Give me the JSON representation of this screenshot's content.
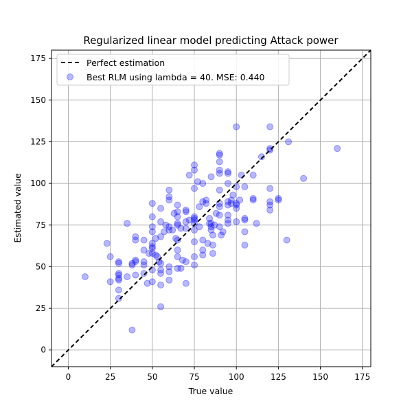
{
  "chart_data": {
    "type": "scatter",
    "title": "Regularized linear model predicting Attack power",
    "xlabel": "True value",
    "ylabel": "Estimated value",
    "xlim": [
      -10,
      180
    ],
    "ylim": [
      -10,
      180
    ],
    "xticks": [
      0,
      25,
      50,
      75,
      100,
      125,
      150,
      175
    ],
    "yticks": [
      0,
      25,
      50,
      75,
      100,
      125,
      150,
      175
    ],
    "xtick_labels": [
      "0",
      "25",
      "50",
      "75",
      "100",
      "125",
      "150",
      "175"
    ],
    "ytick_labels": [
      "0",
      "25",
      "50",
      "75",
      "100",
      "125",
      "150",
      "175"
    ],
    "grid": true,
    "legend_position": "top-left",
    "colors": {
      "points": "#0000ff",
      "reference_line": "#000000"
    },
    "reference_line": {
      "name": "Perfect estimation",
      "style": "dashed",
      "points": [
        [
          -10,
          -10
        ],
        [
          180,
          180
        ]
      ]
    },
    "series": [
      {
        "name": "Best RLM using lambda = 40. MSE: 0.440",
        "points": [
          [
            10,
            44
          ],
          [
            23,
            64
          ],
          [
            25,
            56
          ],
          [
            25,
            41
          ],
          [
            30,
            53
          ],
          [
            30,
            52
          ],
          [
            30,
            46
          ],
          [
            30,
            45
          ],
          [
            30,
            43
          ],
          [
            30,
            42
          ],
          [
            30,
            36
          ],
          [
            30,
            31
          ],
          [
            35,
            76
          ],
          [
            35,
            44
          ],
          [
            38,
            52
          ],
          [
            38,
            51
          ],
          [
            38,
            12
          ],
          [
            40,
            68
          ],
          [
            40,
            66
          ],
          [
            40,
            54
          ],
          [
            40,
            53
          ],
          [
            40,
            45
          ],
          [
            45,
            66
          ],
          [
            45,
            60
          ],
          [
            45,
            53
          ],
          [
            45,
            51
          ],
          [
            45,
            46
          ],
          [
            47,
            40
          ],
          [
            48,
            58
          ],
          [
            50,
            88
          ],
          [
            50,
            80
          ],
          [
            50,
            74
          ],
          [
            50,
            71
          ],
          [
            50,
            64
          ],
          [
            50,
            62
          ],
          [
            50,
            61
          ],
          [
            50,
            58
          ],
          [
            50,
            48
          ],
          [
            50,
            41
          ],
          [
            52,
            67
          ],
          [
            52,
            57
          ],
          [
            53,
            56
          ],
          [
            54,
            53
          ],
          [
            55,
            85
          ],
          [
            55,
            77
          ],
          [
            55,
            68
          ],
          [
            55,
            52
          ],
          [
            55,
            48
          ],
          [
            55,
            46
          ],
          [
            55,
            39
          ],
          [
            55,
            26
          ],
          [
            57,
            71
          ],
          [
            58,
            75
          ],
          [
            60,
            96
          ],
          [
            60,
            92
          ],
          [
            60,
            90
          ],
          [
            60,
            74
          ],
          [
            60,
            72
          ],
          [
            60,
            50
          ],
          [
            60,
            47
          ],
          [
            60,
            42
          ],
          [
            62,
            72
          ],
          [
            63,
            82
          ],
          [
            64,
            67
          ],
          [
            65,
            87
          ],
          [
            65,
            83
          ],
          [
            65,
            80
          ],
          [
            65,
            76
          ],
          [
            65,
            75
          ],
          [
            65,
            66
          ],
          [
            65,
            60
          ],
          [
            65,
            56
          ],
          [
            65,
            49
          ],
          [
            67,
            73
          ],
          [
            67,
            49
          ],
          [
            68,
            54
          ],
          [
            70,
            84
          ],
          [
            70,
            83
          ],
          [
            70,
            77
          ],
          [
            70,
            73
          ],
          [
            70,
            53
          ],
          [
            70,
            40
          ],
          [
            72,
            105
          ],
          [
            72,
            78
          ],
          [
            75,
            111
          ],
          [
            75,
            108
          ],
          [
            75,
            97
          ],
          [
            75,
            80
          ],
          [
            75,
            79
          ],
          [
            75,
            78
          ],
          [
            75,
            76
          ],
          [
            75,
            72
          ],
          [
            75,
            65
          ],
          [
            75,
            56
          ],
          [
            75,
            51
          ],
          [
            77,
            101
          ],
          [
            78,
            86
          ],
          [
            78,
            74
          ],
          [
            80,
            100
          ],
          [
            80,
            89
          ],
          [
            80,
            66
          ],
          [
            80,
            60
          ],
          [
            80,
            57
          ],
          [
            82,
            90
          ],
          [
            82,
            88
          ],
          [
            83,
            64
          ],
          [
            84,
            79
          ],
          [
            84,
            76
          ],
          [
            85,
            76
          ],
          [
            85,
            74
          ],
          [
            85,
            72
          ],
          [
            85,
            104
          ],
          [
            86,
            69
          ],
          [
            86,
            63
          ],
          [
            86,
            58
          ],
          [
            87,
            75
          ],
          [
            88,
            82
          ],
          [
            90,
            118
          ],
          [
            90,
            117
          ],
          [
            90,
            113
          ],
          [
            90,
            108
          ],
          [
            90,
            106
          ],
          [
            90,
            96
          ],
          [
            90,
            88
          ],
          [
            90,
            86
          ],
          [
            90,
            81
          ],
          [
            90,
            74
          ],
          [
            91,
            69
          ],
          [
            92,
            71
          ],
          [
            95,
            107
          ],
          [
            95,
            106
          ],
          [
            95,
            100
          ],
          [
            95,
            89
          ],
          [
            95,
            87
          ],
          [
            95,
            81
          ],
          [
            95,
            78
          ],
          [
            95,
            76
          ],
          [
            97,
            90
          ],
          [
            97,
            88
          ],
          [
            98,
            93
          ],
          [
            100,
            134
          ],
          [
            100,
            98
          ],
          [
            100,
            88
          ],
          [
            100,
            87
          ],
          [
            100,
            85
          ],
          [
            100,
            77
          ],
          [
            102,
            90
          ],
          [
            103,
            105
          ],
          [
            105,
            98
          ],
          [
            105,
            79
          ],
          [
            105,
            78
          ],
          [
            105,
            71
          ],
          [
            105,
            63
          ],
          [
            110,
            105
          ],
          [
            110,
            91
          ],
          [
            110,
            90
          ],
          [
            112,
            76
          ],
          [
            115,
            116
          ],
          [
            120,
            134
          ],
          [
            120,
            121
          ],
          [
            120,
            120
          ],
          [
            120,
            97
          ],
          [
            120,
            89
          ],
          [
            120,
            87
          ],
          [
            120,
            84
          ],
          [
            125,
            91
          ],
          [
            125,
            90
          ],
          [
            130,
            66
          ],
          [
            131,
            125
          ],
          [
            140,
            103
          ],
          [
            160,
            121
          ]
        ]
      }
    ]
  }
}
